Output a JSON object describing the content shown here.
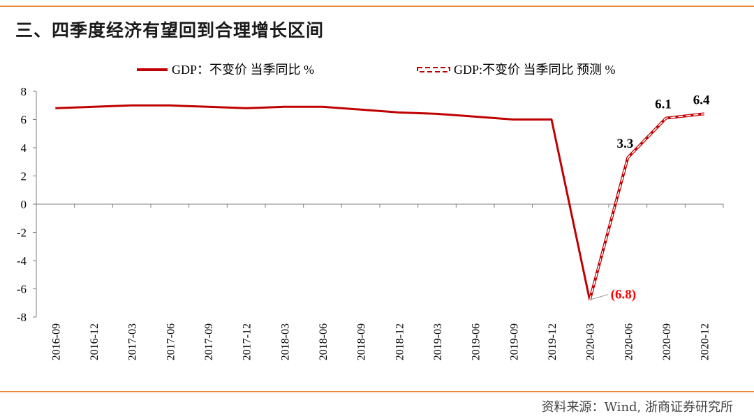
{
  "title": "三、四季度经济有望回到合理增长区间",
  "source": "资料来源：Wind, 浙商证券研究所",
  "colors": {
    "accent_rule": "#e8893a",
    "series": "#c00000",
    "trough_label": "#ff0000"
  },
  "chart_data": {
    "type": "line",
    "x": [
      "2016-09",
      "2016-12",
      "2017-03",
      "2017-06",
      "2017-09",
      "2017-12",
      "2018-03",
      "2018-06",
      "2018-09",
      "2018-12",
      "2019-03",
      "2019-06",
      "2019-09",
      "2019-12",
      "2020-03",
      "2020-06",
      "2020-09",
      "2020-12"
    ],
    "ylim": [
      -8,
      8
    ],
    "yticks": [
      8,
      6,
      4,
      2,
      0,
      -2,
      -4,
      -6,
      -8
    ],
    "legend_position": "top",
    "series": [
      {
        "name": "GDP：不变价 当季同比 %",
        "style": "solid",
        "color": "#c00000",
        "values": [
          6.8,
          6.9,
          7.0,
          7.0,
          6.9,
          6.8,
          6.9,
          6.9,
          6.7,
          6.5,
          6.4,
          6.2,
          6.0,
          6.0,
          -6.8,
          null,
          null,
          null
        ]
      },
      {
        "name": "GDP:不变价 当季同比 预测 %",
        "style": "dashed",
        "color": "#c00000",
        "values": [
          null,
          null,
          null,
          null,
          null,
          null,
          null,
          null,
          null,
          null,
          null,
          null,
          null,
          null,
          -6.8,
          3.3,
          6.1,
          6.4
        ]
      }
    ],
    "annotations": [
      {
        "x": "2020-03",
        "text": "(6.8)",
        "color": "#ff0000"
      },
      {
        "x": "2020-06",
        "text": "3.3",
        "color": "#000000"
      },
      {
        "x": "2020-09",
        "text": "6.1",
        "color": "#000000"
      },
      {
        "x": "2020-12",
        "text": "6.4",
        "color": "#000000"
      }
    ]
  }
}
